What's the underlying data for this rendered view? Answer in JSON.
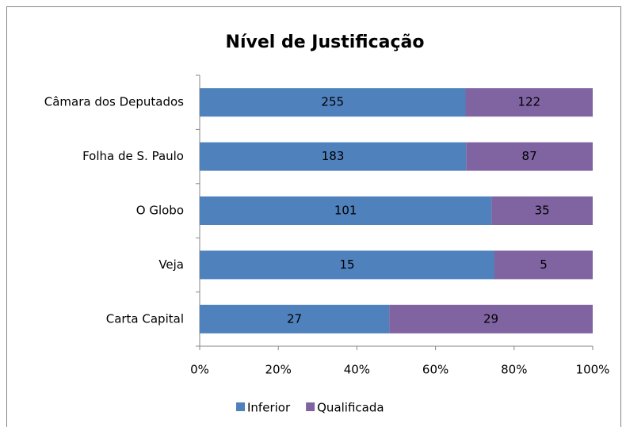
{
  "chart_data": {
    "type": "bar",
    "orientation": "horizontal",
    "stacking": "percent",
    "title": "Nível de Justificação",
    "categories": [
      "Câmara dos Deputados",
      "Folha de S. Paulo",
      "O Globo",
      "Veja",
      "Carta Capital"
    ],
    "series": [
      {
        "name": "Inferior",
        "color": "#4f81bd",
        "values": [
          255,
          183,
          101,
          15,
          27
        ]
      },
      {
        "name": "Qualificada",
        "color": "#8064a2",
        "values": [
          122,
          87,
          35,
          5,
          29
        ]
      }
    ],
    "xlim": [
      0,
      100
    ],
    "xticks": [
      {
        "value": 0,
        "label": "0%"
      },
      {
        "value": 20,
        "label": "20%"
      },
      {
        "value": 40,
        "label": "40%"
      },
      {
        "value": 60,
        "label": "60%"
      },
      {
        "value": 80,
        "label": "80%"
      },
      {
        "value": 100,
        "label": "100%"
      }
    ],
    "grid": false,
    "legend": "bottom"
  }
}
